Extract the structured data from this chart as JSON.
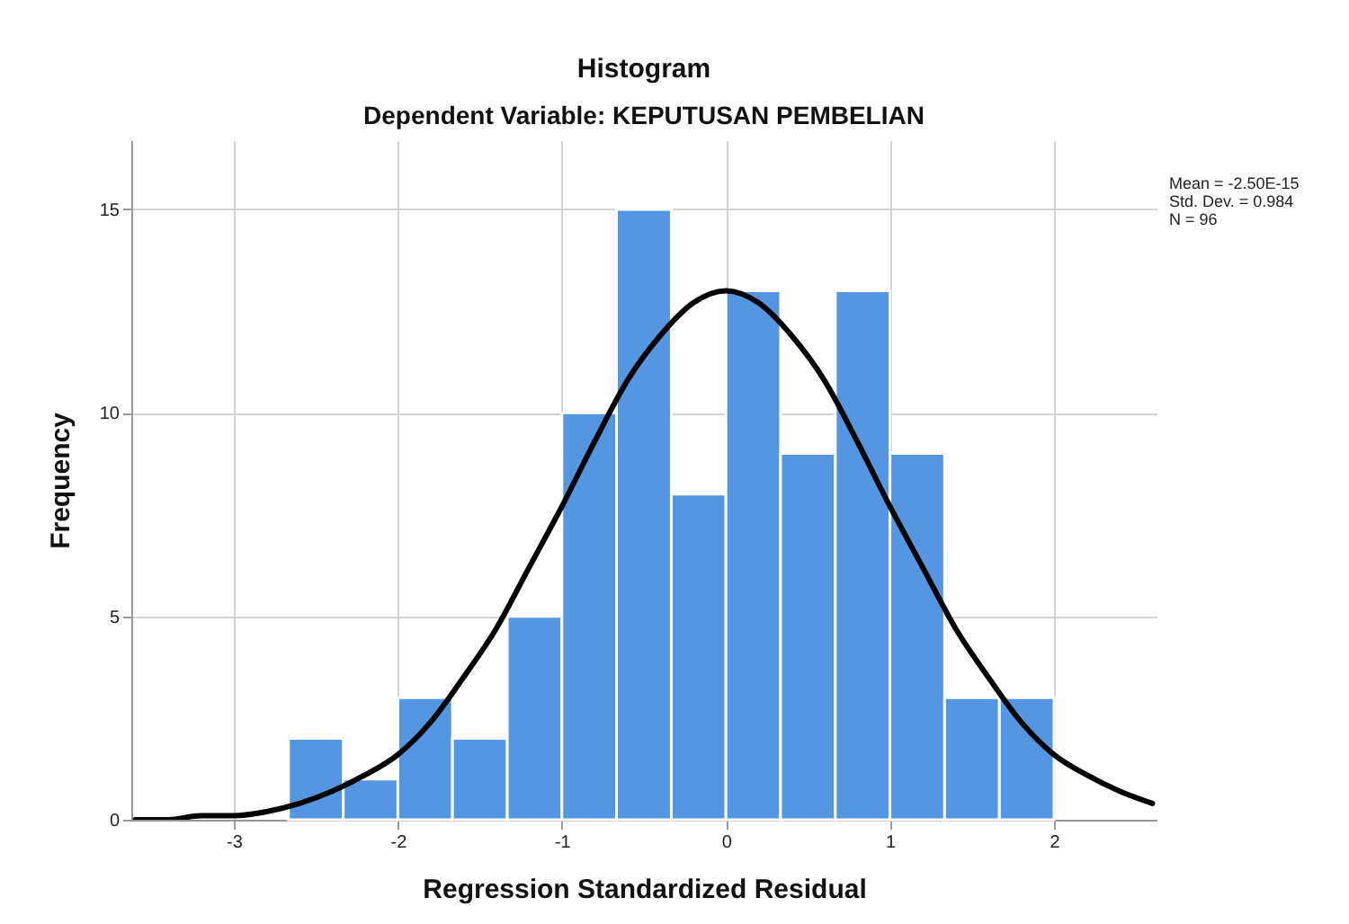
{
  "chart_data": {
    "type": "histogram",
    "title": "Histogram",
    "subtitle": "Dependent Variable: KEPUTUSAN PEMBELIAN",
    "xlabel": "Regression Standardized Residual",
    "ylabel": "Frequency",
    "series": [
      {
        "color": "#5596e3",
        "bins": [
          -2.667,
          -2.333,
          -2,
          -1.667,
          -1.333,
          -1,
          -0.667,
          -0.333,
          0,
          0.333,
          0.667,
          1,
          1.333,
          1.667,
          2
        ],
        "values": [
          2,
          1,
          3,
          2,
          5,
          10,
          15,
          8,
          13,
          9,
          13,
          9,
          3,
          3
        ]
      },
      {
        "type": "line",
        "color": "#000000",
        "x": [
          -3.6,
          -3.4,
          -3.2,
          -3.0,
          -2.8,
          -2.6,
          -2.4,
          -2.2,
          -2.0,
          -1.8,
          -1.6,
          -1.4,
          -1.2,
          -1.0,
          -0.8,
          -0.6,
          -0.4,
          -0.2,
          0,
          0.2,
          0.4,
          0.6,
          0.8,
          1.0,
          1.2,
          1.4,
          1.6,
          1.8,
          2.0,
          2.2,
          2.4,
          2.6
        ],
        "values": [
          0.0,
          0.0,
          0.1,
          0.1,
          0.2,
          0.4,
          0.7,
          1.1,
          1.6,
          2.4,
          3.5,
          4.7,
          6.2,
          7.7,
          9.3,
          10.8,
          11.9,
          12.7,
          13.0,
          12.7,
          11.9,
          10.8,
          9.3,
          7.7,
          6.2,
          4.7,
          3.5,
          2.4,
          1.6,
          1.1,
          0.7,
          0.4
        ]
      }
    ],
    "xlim": [
      -3.625,
      2.625
    ],
    "xticks": [
      -3,
      -2,
      -1,
      0,
      1,
      2
    ],
    "ylim": [
      0,
      16.7
    ],
    "yticks": [
      0,
      5,
      10,
      15
    ],
    "grid": true,
    "annotations": [
      "Mean = -2.50E-15",
      "Std. Dev. = 0.984",
      "N = 96"
    ]
  }
}
